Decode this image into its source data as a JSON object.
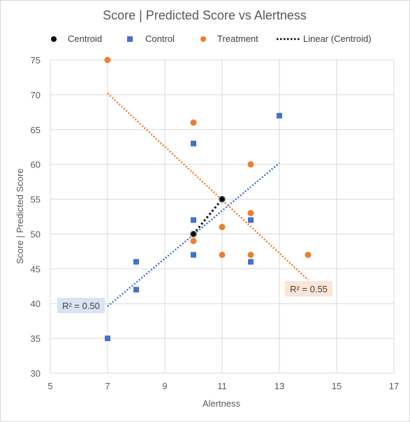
{
  "chart_data": {
    "type": "scatter",
    "title": "Score | Predicted Score vs Alertness",
    "xlabel": "Alertness",
    "ylabel": "Score | Predicted  Score",
    "xlim": [
      5,
      17
    ],
    "ylim": [
      30,
      75
    ],
    "xticks": [
      5,
      7,
      9,
      11,
      13,
      15,
      17
    ],
    "yticks": [
      30,
      35,
      40,
      45,
      50,
      55,
      60,
      65,
      70,
      75
    ],
    "grid": true,
    "legend_position": "top",
    "series": [
      {
        "name": "Centroid",
        "marker": "circle",
        "color": "#000000",
        "points": [
          [
            10,
            50
          ],
          [
            11,
            55
          ]
        ]
      },
      {
        "name": "Control",
        "marker": "square",
        "color": "#4472c4",
        "points": [
          [
            7,
            35
          ],
          [
            8,
            42
          ],
          [
            8,
            46
          ],
          [
            10,
            47
          ],
          [
            10,
            52
          ],
          [
            10,
            63
          ],
          [
            12,
            46
          ],
          [
            12,
            52
          ],
          [
            13,
            67
          ]
        ]
      },
      {
        "name": "Treatment",
        "marker": "circle",
        "color": "#ed7d31",
        "points": [
          [
            7,
            75
          ],
          [
            10,
            49
          ],
          [
            10,
            66
          ],
          [
            11,
            47
          ],
          [
            11,
            51
          ],
          [
            12,
            47
          ],
          [
            12,
            53
          ],
          [
            12,
            60
          ],
          [
            14,
            47
          ]
        ]
      }
    ],
    "trendlines": [
      {
        "name": "Linear (Centroid)",
        "color": "#000000",
        "from": [
          10,
          50
        ],
        "to": [
          11,
          55
        ],
        "in_legend": true
      },
      {
        "series": "Control",
        "color": "#4472c4",
        "from": [
          7,
          39.6
        ],
        "to": [
          13,
          60.2
        ],
        "in_legend": false
      },
      {
        "series": "Treatment",
        "color": "#ed7d31",
        "from": [
          7,
          70.2
        ],
        "to": [
          14,
          43.4
        ],
        "in_legend": false
      }
    ],
    "annotations": [
      {
        "text": "R² = 0.50",
        "series": "Control",
        "bg": "#dae3f3"
      },
      {
        "text": "R² = 0.55",
        "series": "Treatment",
        "bg": "#fbe5d6"
      }
    ],
    "legend": [
      {
        "label": "Centroid",
        "symbol": "circle",
        "color": "#000000"
      },
      {
        "label": "Control",
        "symbol": "square",
        "color": "#4472c4"
      },
      {
        "label": "Treatment",
        "symbol": "circle",
        "color": "#ed7d31"
      },
      {
        "label": "Linear (Centroid)",
        "symbol": "dotted-line",
        "color": "#000000"
      }
    ]
  }
}
